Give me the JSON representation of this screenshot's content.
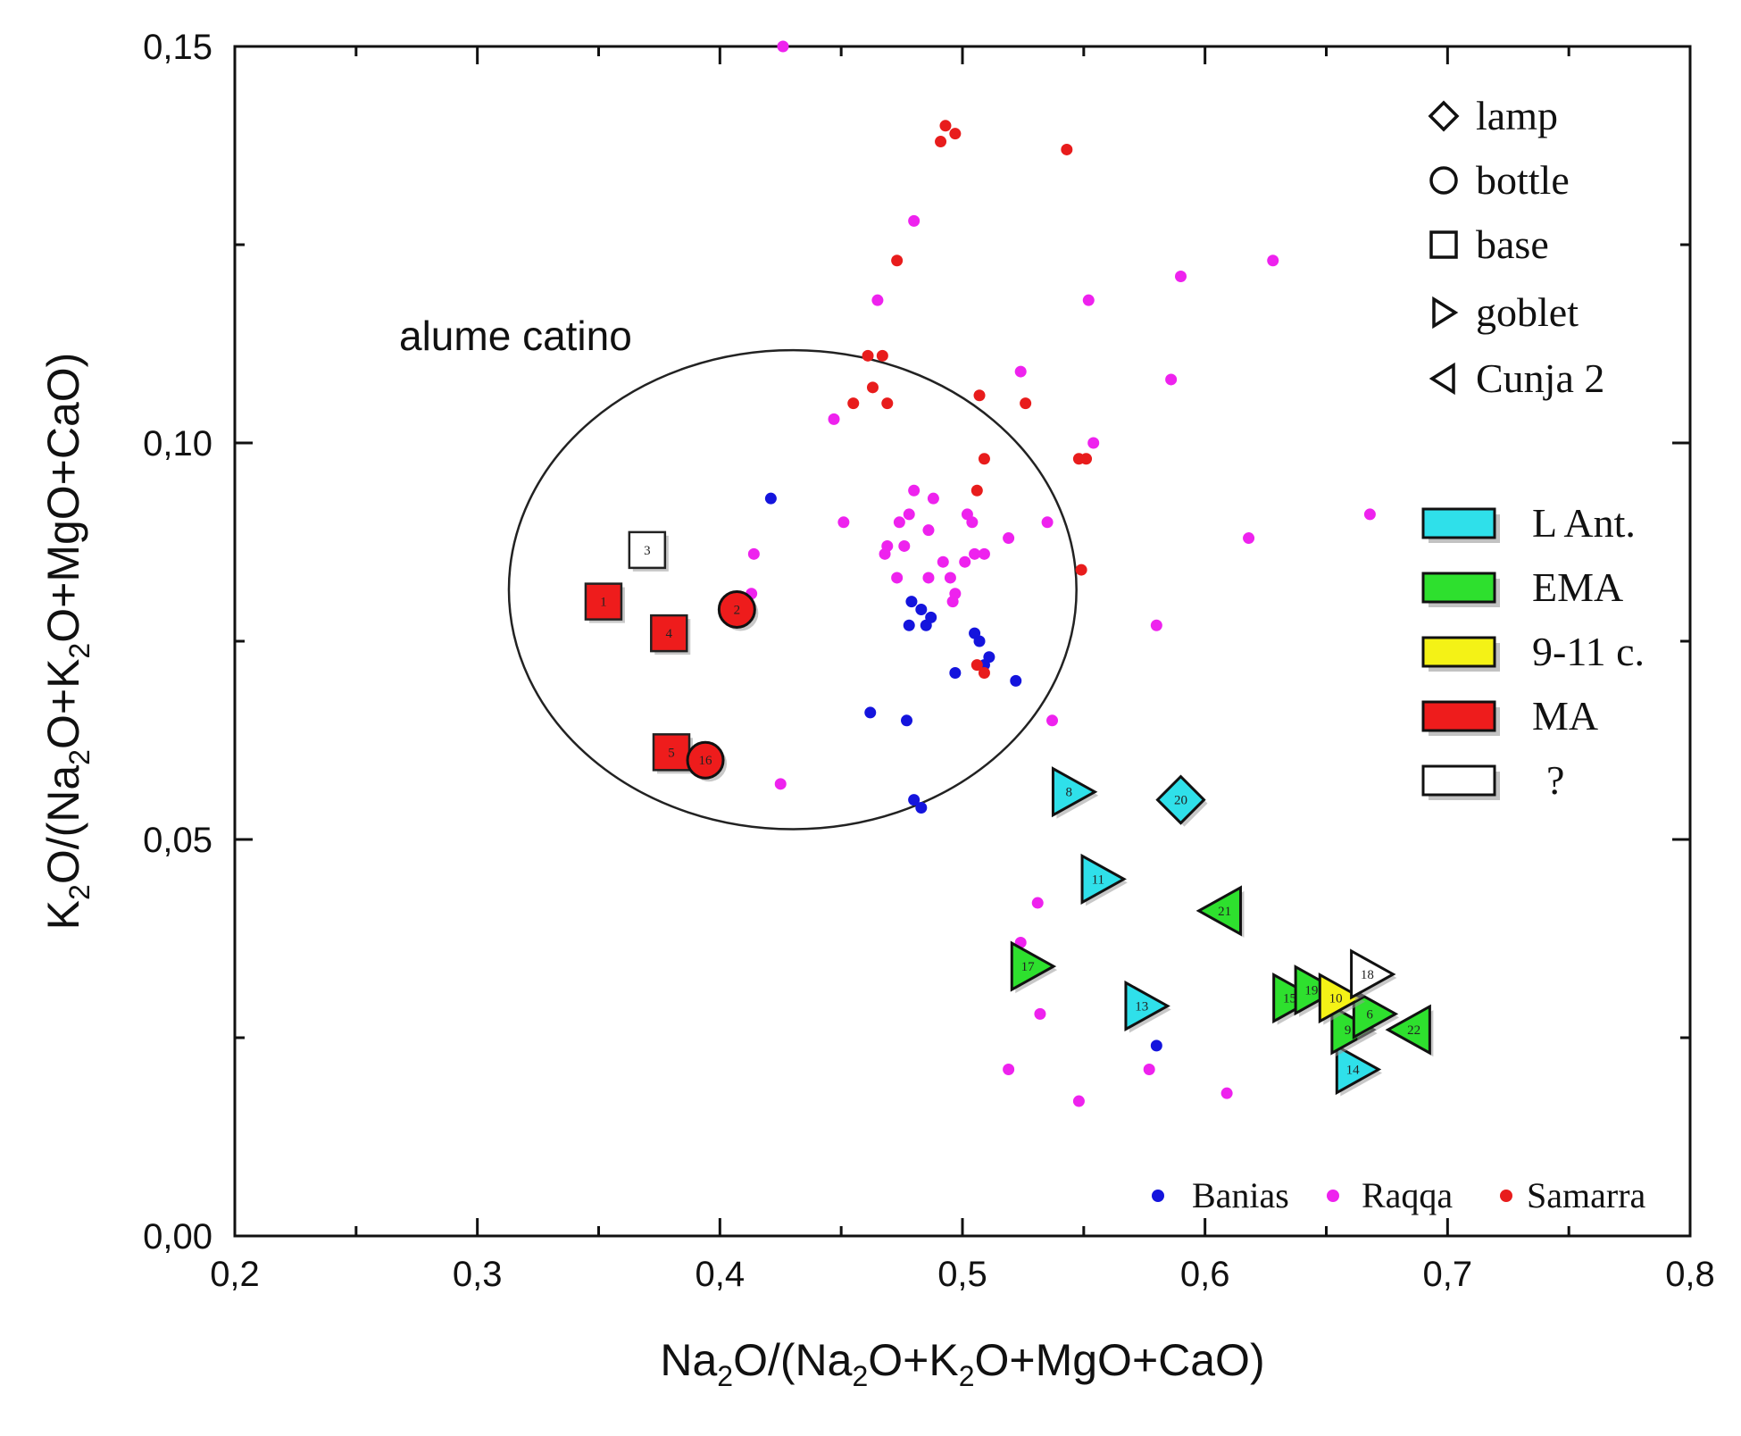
{
  "chart_data": {
    "type": "scatter",
    "xlabel": "Na2O/(Na2O+K2O+MgO+CaO)",
    "ylabel": "K2O/(Na2O+K2O+MgO+CaO)",
    "xlim": [
      0.2,
      0.8
    ],
    "ylim": [
      0.0,
      0.15
    ],
    "x_ticks": [
      0.2,
      0.3,
      0.4,
      0.5,
      0.6,
      0.7,
      0.8
    ],
    "x_tick_labels": [
      "0,2",
      "0,3",
      "0,4",
      "0,5",
      "0,6",
      "0,7",
      "0,8"
    ],
    "y_ticks": [
      0.0,
      0.05,
      0.1,
      0.15
    ],
    "y_tick_labels": [
      "0,00",
      "0,05",
      "0,10",
      "0,15"
    ],
    "annotation": {
      "text": "alume catino",
      "ellipse": {
        "cx": 0.43,
        "cy": 0.0815,
        "rx": 0.117,
        "ry": 0.0302
      }
    },
    "shape_legend": [
      {
        "shape": "diamond",
        "label": "lamp"
      },
      {
        "shape": "circle",
        "label": "bottle"
      },
      {
        "shape": "square",
        "label": "base"
      },
      {
        "shape": "triangle-right",
        "label": "goblet"
      },
      {
        "shape": "triangle-left",
        "label": "Cunja 2"
      }
    ],
    "color_legend": [
      {
        "color": "#2fe0ea",
        "label": "L Ant."
      },
      {
        "color": "#2ee02e",
        "label": "EMA"
      },
      {
        "color": "#f4f216",
        "label": "9-11 c."
      },
      {
        "color": "#ee1c1c",
        "label": "MA"
      },
      {
        "color": "#ffffff",
        "label": "?"
      }
    ],
    "ref_legend": [
      {
        "color": "#1414dd",
        "label": "Banias"
      },
      {
        "color": "#ee22ee",
        "label": "Raqqa"
      },
      {
        "color": "#e81c1c",
        "label": "Samarra"
      }
    ],
    "reference_series": [
      {
        "name": "Banias",
        "color": "#1414dd",
        "points": [
          [
            0.421,
            0.093
          ],
          [
            0.479,
            0.08
          ],
          [
            0.483,
            0.079
          ],
          [
            0.485,
            0.077
          ],
          [
            0.487,
            0.078
          ],
          [
            0.478,
            0.077
          ],
          [
            0.505,
            0.076
          ],
          [
            0.507,
            0.075
          ],
          [
            0.511,
            0.073
          ],
          [
            0.509,
            0.072
          ],
          [
            0.497,
            0.071
          ],
          [
            0.522,
            0.07
          ],
          [
            0.462,
            0.066
          ],
          [
            0.477,
            0.065
          ],
          [
            0.48,
            0.055
          ],
          [
            0.483,
            0.054
          ],
          [
            0.58,
            0.024
          ]
        ]
      },
      {
        "name": "Raqqa",
        "color": "#ee22ee",
        "points": [
          [
            0.426,
            0.15
          ],
          [
            0.48,
            0.128
          ],
          [
            0.628,
            0.123
          ],
          [
            0.59,
            0.121
          ],
          [
            0.465,
            0.118
          ],
          [
            0.552,
            0.118
          ],
          [
            0.524,
            0.109
          ],
          [
            0.586,
            0.108
          ],
          [
            0.447,
            0.103
          ],
          [
            0.554,
            0.1
          ],
          [
            0.48,
            0.094
          ],
          [
            0.488,
            0.093
          ],
          [
            0.478,
            0.091
          ],
          [
            0.502,
            0.091
          ],
          [
            0.504,
            0.09
          ],
          [
            0.535,
            0.09
          ],
          [
            0.668,
            0.091
          ],
          [
            0.451,
            0.09
          ],
          [
            0.486,
            0.089
          ],
          [
            0.474,
            0.09
          ],
          [
            0.476,
            0.087
          ],
          [
            0.519,
            0.088
          ],
          [
            0.618,
            0.088
          ],
          [
            0.414,
            0.086
          ],
          [
            0.469,
            0.087
          ],
          [
            0.468,
            0.086
          ],
          [
            0.492,
            0.085
          ],
          [
            0.505,
            0.086
          ],
          [
            0.501,
            0.085
          ],
          [
            0.509,
            0.086
          ],
          [
            0.486,
            0.083
          ],
          [
            0.495,
            0.083
          ],
          [
            0.473,
            0.083
          ],
          [
            0.497,
            0.081
          ],
          [
            0.496,
            0.08
          ],
          [
            0.413,
            0.081
          ],
          [
            0.58,
            0.077
          ],
          [
            0.537,
            0.065
          ],
          [
            0.425,
            0.057
          ],
          [
            0.531,
            0.042
          ],
          [
            0.524,
            0.037
          ],
          [
            0.532,
            0.028
          ],
          [
            0.519,
            0.021
          ],
          [
            0.577,
            0.021
          ],
          [
            0.609,
            0.018
          ],
          [
            0.548,
            0.017
          ]
        ]
      },
      {
        "name": "Samarra",
        "color": "#e81c1c",
        "points": [
          [
            0.493,
            0.14
          ],
          [
            0.497,
            0.139
          ],
          [
            0.491,
            0.138
          ],
          [
            0.543,
            0.137
          ],
          [
            0.473,
            0.123
          ],
          [
            0.461,
            0.111
          ],
          [
            0.467,
            0.111
          ],
          [
            0.463,
            0.107
          ],
          [
            0.507,
            0.106
          ],
          [
            0.526,
            0.105
          ],
          [
            0.455,
            0.105
          ],
          [
            0.469,
            0.105
          ],
          [
            0.548,
            0.098
          ],
          [
            0.551,
            0.098
          ],
          [
            0.509,
            0.098
          ],
          [
            0.506,
            0.094
          ],
          [
            0.549,
            0.084
          ],
          [
            0.506,
            0.072
          ],
          [
            0.509,
            0.071
          ]
        ]
      }
    ],
    "samples": [
      {
        "label": "3",
        "shape": "square",
        "color": "#ffffff",
        "x": 0.37,
        "y": 0.0865
      },
      {
        "label": "1",
        "shape": "square",
        "color": "#ee1c1c",
        "x": 0.352,
        "y": 0.08
      },
      {
        "label": "4",
        "shape": "square",
        "color": "#ee1c1c",
        "x": 0.379,
        "y": 0.076
      },
      {
        "label": "5",
        "shape": "square",
        "color": "#ee1c1c",
        "x": 0.38,
        "y": 0.061
      },
      {
        "label": "2",
        "shape": "circle",
        "color": "#ee1c1c",
        "x": 0.407,
        "y": 0.079
      },
      {
        "label": "16",
        "shape": "circle",
        "color": "#ee1c1c",
        "x": 0.394,
        "y": 0.06
      },
      {
        "label": "20",
        "shape": "diamond",
        "color": "#2fe0ea",
        "x": 0.59,
        "y": 0.055
      },
      {
        "label": "8",
        "shape": "triangle-right",
        "color": "#2fe0ea",
        "x": 0.545,
        "y": 0.056
      },
      {
        "label": "11",
        "shape": "triangle-right",
        "color": "#2fe0ea",
        "x": 0.557,
        "y": 0.045
      },
      {
        "label": "13",
        "shape": "triangle-right",
        "color": "#2fe0ea",
        "x": 0.575,
        "y": 0.029
      },
      {
        "label": "14",
        "shape": "triangle-right",
        "color": "#2fe0ea",
        "x": 0.662,
        "y": 0.021
      },
      {
        "label": "21",
        "shape": "triangle-left",
        "color": "#2ee02e",
        "x": 0.607,
        "y": 0.041
      },
      {
        "label": "17",
        "shape": "triangle-right",
        "color": "#2ee02e",
        "x": 0.528,
        "y": 0.034
      },
      {
        "label": "15",
        "shape": "triangle-right",
        "color": "#2ee02e",
        "x": 0.636,
        "y": 0.03
      },
      {
        "label": "19",
        "shape": "triangle-right",
        "color": "#2ee02e",
        "x": 0.645,
        "y": 0.031
      },
      {
        "label": "9",
        "shape": "triangle-right",
        "color": "#2ee02e",
        "x": 0.66,
        "y": 0.026
      },
      {
        "label": "6",
        "shape": "triangle-right",
        "color": "#2ee02e",
        "x": 0.669,
        "y": 0.028
      },
      {
        "label": "22",
        "shape": "triangle-left",
        "color": "#2ee02e",
        "x": 0.685,
        "y": 0.026
      },
      {
        "label": "10",
        "shape": "triangle-right",
        "color": "#f4f216",
        "x": 0.655,
        "y": 0.03
      },
      {
        "label": "18",
        "shape": "triangle-right",
        "color": "#ffffff",
        "x": 0.668,
        "y": 0.033
      }
    ]
  }
}
